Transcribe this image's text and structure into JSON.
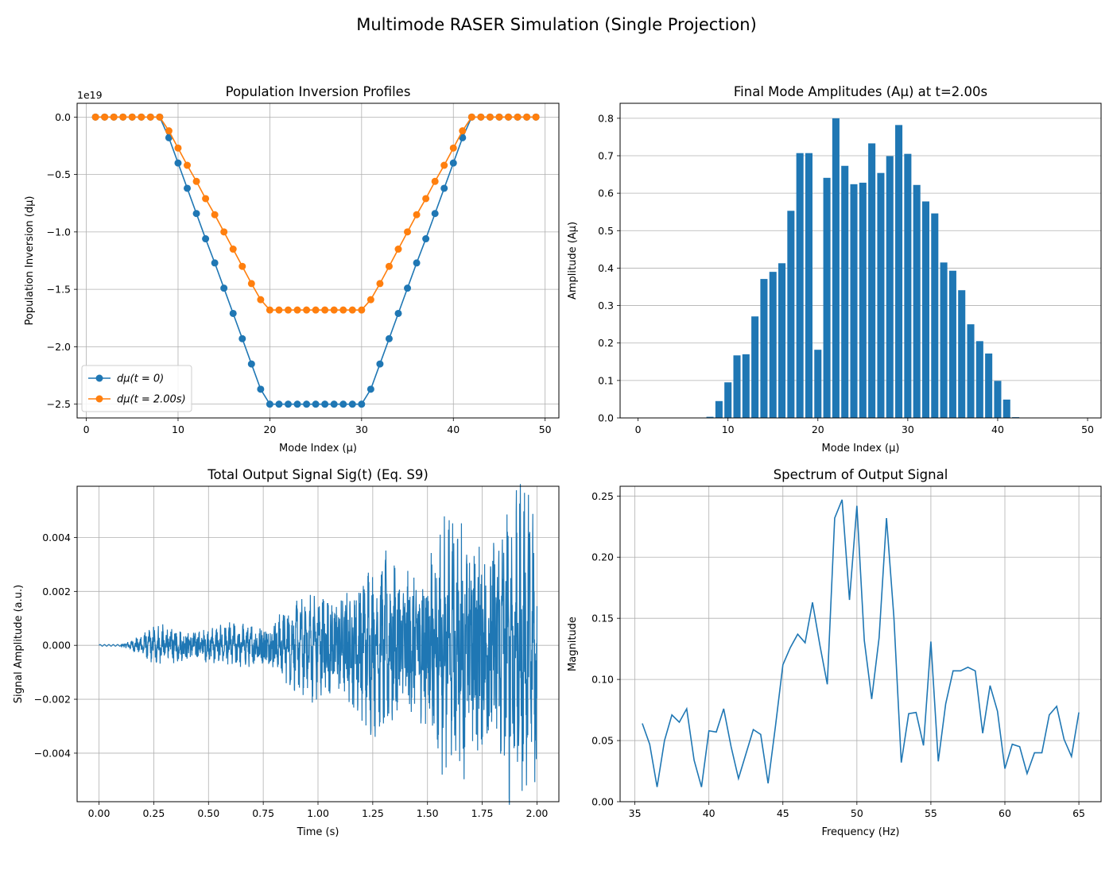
{
  "figure": {
    "suptitle": "Multimode RASER Simulation (Single Projection)"
  },
  "chart_data": [
    {
      "id": "inversion",
      "type": "line",
      "title": "Population Inversion Profiles",
      "xlabel": "Mode Index (μ)",
      "ylabel": "Population Inversion (dμ)",
      "offset_label": "1e19",
      "xlim": [
        -1,
        51.5
      ],
      "ylim": [
        -2.62,
        0.12
      ],
      "xticks": [
        0,
        10,
        20,
        30,
        40,
        50
      ],
      "yticks": [
        0.0,
        -0.5,
        -1.0,
        -1.5,
        -2.0,
        -2.5
      ],
      "ytick_labels": [
        "0.0",
        "−0.5",
        "−1.0",
        "−1.5",
        "−2.0",
        "−2.5"
      ],
      "grid": true,
      "legend_position": "lower-left",
      "x": [
        1,
        2,
        3,
        4,
        5,
        6,
        7,
        8,
        9,
        10,
        11,
        12,
        13,
        14,
        15,
        16,
        17,
        18,
        19,
        20,
        21,
        22,
        23,
        24,
        25,
        26,
        27,
        28,
        29,
        30,
        31,
        32,
        33,
        34,
        35,
        36,
        37,
        38,
        39,
        40,
        41,
        42,
        43,
        44,
        45,
        46,
        47,
        48,
        49
      ],
      "series": [
        {
          "name": "dμ(t = 0)",
          "color": "#1f77b4",
          "values": [
            0,
            0,
            0,
            0,
            0,
            0,
            0,
            0,
            -0.18,
            -0.4,
            -0.62,
            -0.84,
            -1.06,
            -1.27,
            -1.49,
            -1.71,
            -1.93,
            -2.15,
            -2.37,
            -2.5,
            -2.5,
            -2.5,
            -2.5,
            -2.5,
            -2.5,
            -2.5,
            -2.5,
            -2.5,
            -2.5,
            -2.5,
            -2.37,
            -2.15,
            -1.93,
            -1.71,
            -1.49,
            -1.27,
            -1.06,
            -0.84,
            -0.62,
            -0.4,
            -0.18,
            0,
            0,
            0,
            0,
            0,
            0,
            0,
            0
          ]
        },
        {
          "name": "dμ(t = 2.00s)",
          "color": "#ff7f0e",
          "values": [
            0,
            0,
            0,
            0,
            0,
            0,
            0,
            0,
            -0.12,
            -0.27,
            -0.42,
            -0.56,
            -0.71,
            -0.85,
            -1.0,
            -1.15,
            -1.3,
            -1.45,
            -1.59,
            -1.68,
            -1.68,
            -1.68,
            -1.68,
            -1.68,
            -1.68,
            -1.68,
            -1.68,
            -1.68,
            -1.68,
            -1.68,
            -1.59,
            -1.45,
            -1.3,
            -1.15,
            -1.0,
            -0.85,
            -0.71,
            -0.56,
            -0.42,
            -0.27,
            -0.12,
            0,
            0,
            0,
            0,
            0,
            0,
            0,
            0
          ]
        }
      ]
    },
    {
      "id": "amplitudes",
      "type": "bar",
      "title": "Final Mode Amplitudes (Aμ) at t=2.00s",
      "xlabel": "Mode Index (μ)",
      "ylabel": "Amplitude (Aμ)",
      "xlim": [
        -2,
        51.5
      ],
      "ylim": [
        0,
        0.84
      ],
      "xticks": [
        0,
        10,
        20,
        30,
        40,
        50
      ],
      "yticks": [
        0.0,
        0.1,
        0.2,
        0.3,
        0.4,
        0.5,
        0.6,
        0.7,
        0.8
      ],
      "ytick_labels": [
        "0.0",
        "0.1",
        "0.2",
        "0.3",
        "0.4",
        "0.5",
        "0.6",
        "0.7",
        "0.8"
      ],
      "grid": true,
      "grid_axis": "y",
      "color": "#1f77b4",
      "categories": [
        1,
        2,
        3,
        4,
        5,
        6,
        7,
        8,
        9,
        10,
        11,
        12,
        13,
        14,
        15,
        16,
        17,
        18,
        19,
        20,
        21,
        22,
        23,
        24,
        25,
        26,
        27,
        28,
        29,
        30,
        31,
        32,
        33,
        34,
        35,
        36,
        37,
        38,
        39,
        40,
        41,
        42,
        43,
        44,
        45,
        46,
        47,
        48,
        49
      ],
      "values": [
        0,
        0,
        0,
        0,
        0,
        0,
        0,
        0.003,
        0.045,
        0.095,
        0.167,
        0.17,
        0.271,
        0.371,
        0.39,
        0.413,
        0.553,
        0.707,
        0.707,
        0.182,
        0.641,
        0.8,
        0.673,
        0.624,
        0.628,
        0.733,
        0.654,
        0.699,
        0.782,
        0.705,
        0.622,
        0.578,
        0.546,
        0.415,
        0.393,
        0.341,
        0.25,
        0.205,
        0.172,
        0.099,
        0.049,
        0.002,
        0,
        0,
        0,
        0,
        0,
        0,
        0
      ]
    },
    {
      "id": "signal",
      "type": "line",
      "title": "Total Output Signal Sig(t) (Eq. S9)",
      "xlabel": "Time (s)",
      "ylabel": "Signal Amplitude (a.u.)",
      "xlim": [
        -0.1,
        2.1
      ],
      "ylim": [
        -0.0058,
        0.0059
      ],
      "xticks": [
        0.0,
        0.25,
        0.5,
        0.75,
        1.0,
        1.25,
        1.5,
        1.75,
        2.0
      ],
      "xtick_labels": [
        "0.00",
        "0.25",
        "0.50",
        "0.75",
        "1.00",
        "1.25",
        "1.50",
        "1.75",
        "2.00"
      ],
      "yticks": [
        0.004,
        0.002,
        0.0,
        -0.002,
        -0.004
      ],
      "ytick_labels": [
        "0.004",
        "0.002",
        "0.000",
        "−0.002",
        "−0.004"
      ],
      "grid": true,
      "color": "#1f77b4",
      "envelope": {
        "t": [
          0.0,
          0.1,
          0.15,
          0.2,
          0.25,
          0.5,
          0.75,
          1.0,
          1.25,
          1.5,
          1.75,
          2.0
        ],
        "amplitude": [
          5e-05,
          6e-05,
          0.0002,
          0.0004,
          0.0006,
          0.0006,
          0.0008,
          0.0018,
          0.0026,
          0.0034,
          0.0044,
          0.0052
        ]
      },
      "samples": 2000
    },
    {
      "id": "spectrum",
      "type": "line",
      "title": "Spectrum of Output Signal",
      "xlabel": "Frequency (Hz)",
      "ylabel": "Magnitude",
      "xlim": [
        34,
        66.5
      ],
      "ylim": [
        0,
        0.258
      ],
      "xticks": [
        35,
        40,
        45,
        50,
        55,
        60,
        65
      ],
      "yticks": [
        0.0,
        0.05,
        0.1,
        0.15,
        0.2,
        0.25
      ],
      "ytick_labels": [
        "0.00",
        "0.05",
        "0.10",
        "0.15",
        "0.20",
        "0.25"
      ],
      "grid": true,
      "color": "#1f77b4",
      "x": [
        35.5,
        36,
        36.5,
        37,
        37.5,
        38,
        38.5,
        39,
        39.5,
        40,
        40.5,
        41,
        41.5,
        42,
        42.5,
        43,
        43.5,
        44,
        44.5,
        45,
        45.5,
        46,
        46.5,
        47,
        47.5,
        48,
        48.5,
        49,
        49.5,
        50,
        50.5,
        51,
        51.5,
        52,
        52.5,
        53,
        53.5,
        54,
        54.5,
        55,
        55.5,
        56,
        56.5,
        57,
        57.5,
        58,
        58.5,
        59,
        59.5,
        60,
        60.5,
        61,
        61.5,
        62,
        62.5,
        63,
        63.5,
        64,
        64.5,
        65
      ],
      "values": [
        0.064,
        0.047,
        0.012,
        0.05,
        0.071,
        0.065,
        0.076,
        0.034,
        0.012,
        0.058,
        0.057,
        0.076,
        0.045,
        0.019,
        0.039,
        0.059,
        0.055,
        0.015,
        0.062,
        0.112,
        0.126,
        0.137,
        0.13,
        0.163,
        0.128,
        0.096,
        0.232,
        0.247,
        0.165,
        0.242,
        0.132,
        0.084,
        0.134,
        0.232,
        0.151,
        0.032,
        0.072,
        0.073,
        0.046,
        0.131,
        0.033,
        0.08,
        0.107,
        0.107,
        0.11,
        0.107,
        0.056,
        0.095,
        0.074,
        0.027,
        0.047,
        0.045,
        0.023,
        0.04,
        0.04,
        0.071,
        0.078,
        0.051,
        0.037,
        0.073
      ]
    }
  ]
}
